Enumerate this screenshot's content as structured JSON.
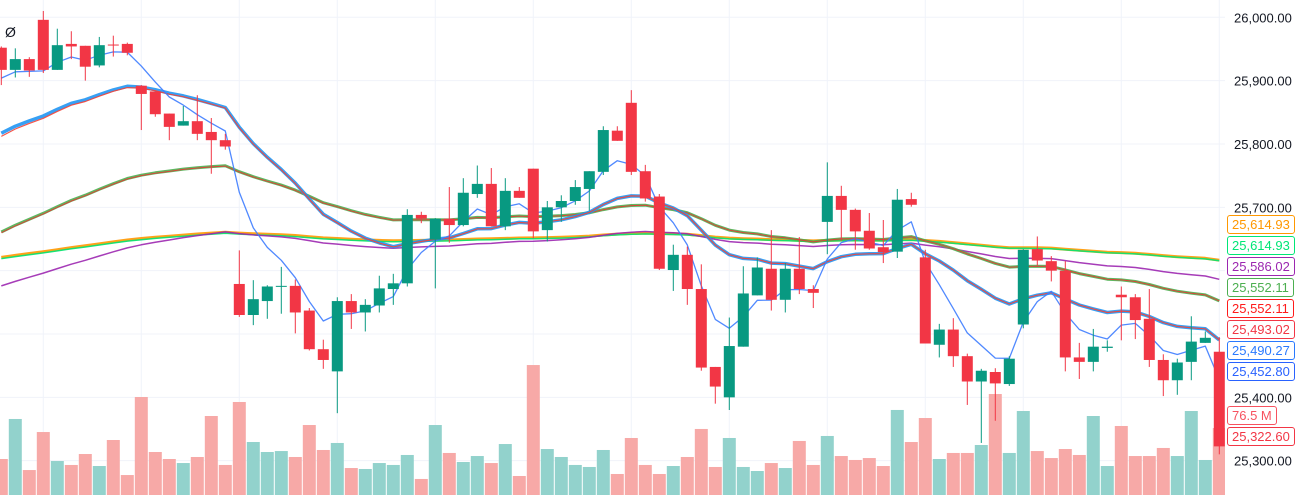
{
  "chart_data": {
    "type": "candlestick",
    "title": "",
    "symbol_marker": "Ø",
    "y_axis": {
      "range": [
        25280,
        26030
      ],
      "ticks": [
        "26,000.00",
        "25,900.00",
        "25,800.00",
        "25,700.00",
        "25,400.00",
        "25,300.00"
      ],
      "tick_values": [
        26000,
        25900,
        25800,
        25700,
        25400,
        25300
      ],
      "grid": true,
      "position": "right"
    },
    "colors": {
      "up": "#089981",
      "down": "#F23645",
      "volume_up": "#92D2CC",
      "volume_down": "#F7A9A7"
    },
    "candle_fields": [
      "open",
      "high",
      "low",
      "close",
      "volume_millions"
    ],
    "candles": [
      [
        25952,
        25954,
        25893,
        25917,
        41.1
      ],
      [
        25917,
        25951,
        25905,
        25934,
        86.8
      ],
      [
        25934,
        25937,
        25906,
        25916,
        28.5
      ],
      [
        25996,
        26010,
        25912,
        25917,
        71.9
      ],
      [
        25917,
        25982,
        25917,
        25956,
        38.8
      ],
      [
        25958,
        25978,
        25934,
        25954,
        34.3
      ],
      [
        25955,
        25955,
        25900,
        25922,
        46.8
      ],
      [
        25924,
        25969,
        25921,
        25956,
        33.1
      ],
      [
        25957,
        25971,
        25938,
        25956,
        62.8
      ],
      [
        25958,
        25960,
        25940,
        25944,
        22.8
      ],
      [
        25892,
        25893,
        25822,
        25879,
        111.9
      ],
      [
        25883,
        25883,
        25843,
        25847,
        49.1
      ],
      [
        25848,
        25848,
        25806,
        25827,
        41.1
      ],
      [
        25829,
        25860,
        25829,
        25836,
        36.5
      ],
      [
        25836,
        25877,
        25806,
        25816,
        43.4
      ],
      [
        25819,
        25841,
        25753,
        25806,
        90.2
      ],
      [
        25806,
        25816,
        25791,
        25796,
        34.3
      ],
      [
        25579,
        25632,
        25527,
        25530,
        106.2
      ],
      [
        25530,
        25585,
        25514,
        25555,
        60.5
      ],
      [
        25552,
        25577,
        25524,
        25575,
        49.1
      ],
      [
        25575,
        25606,
        25532,
        25576,
        50.2
      ],
      [
        25576,
        25586,
        25501,
        25534,
        43.4
      ],
      [
        25537,
        25541,
        25474,
        25476,
        79.9
      ],
      [
        25476,
        25491,
        25445,
        25459,
        51.4
      ],
      [
        25441,
        25558,
        25375,
        25552,
        59.4
      ],
      [
        25552,
        25563,
        25508,
        25534,
        30.8
      ],
      [
        25534,
        25555,
        25504,
        25546,
        29.7
      ],
      [
        25545,
        25592,
        25534,
        25572,
        36.5
      ],
      [
        25571,
        25595,
        25546,
        25580,
        34.3
      ],
      [
        25580,
        25697,
        25575,
        25688,
        45.7
      ],
      [
        25688,
        25693,
        25675,
        25682,
        18.3
      ],
      [
        25649,
        25683,
        25572,
        25682,
        79.9
      ],
      [
        25682,
        25732,
        25644,
        25672,
        48.0
      ],
      [
        25672,
        25746,
        25670,
        25723,
        37.7
      ],
      [
        25721,
        25766,
        25715,
        25737,
        44.5
      ],
      [
        25737,
        25762,
        25670,
        25670,
        36.5
      ],
      [
        25670,
        25746,
        25664,
        25726,
        58.2
      ],
      [
        25726,
        25732,
        25715,
        25715,
        21.7
      ],
      [
        25761,
        25761,
        25651,
        25662,
        148.4
      ],
      [
        25664,
        25710,
        25646,
        25700,
        52.5
      ],
      [
        25700,
        25719,
        25677,
        25710,
        43.4
      ],
      [
        25710,
        25743,
        25704,
        25732,
        34.3
      ],
      [
        25729,
        25757,
        25695,
        25757,
        32.0
      ],
      [
        25756,
        25828,
        25751,
        25822,
        51.4
      ],
      [
        25821,
        25828,
        25805,
        25805,
        24.0
      ],
      [
        25865,
        25885,
        25751,
        25756,
        65.1
      ],
      [
        25757,
        25767,
        25709,
        25714,
        34.3
      ],
      [
        25717,
        25721,
        25601,
        25603,
        24.0
      ],
      [
        25601,
        25641,
        25568,
        25625,
        33.1
      ],
      [
        25625,
        25638,
        25546,
        25571,
        43.4
      ],
      [
        25571,
        25610,
        25442,
        25447,
        75.4
      ],
      [
        25448,
        25448,
        25390,
        25417,
        32.0
      ],
      [
        25400,
        25526,
        25380,
        25481,
        65.1
      ],
      [
        25480,
        25607,
        25480,
        25564,
        32.0
      ],
      [
        25561,
        25621,
        25561,
        25605,
        27.4
      ],
      [
        25603,
        25664,
        25537,
        25554,
        36.5
      ],
      [
        25554,
        25612,
        25534,
        25603,
        30.8
      ],
      [
        25603,
        25653,
        25563,
        25571,
        61.7
      ],
      [
        25571,
        25577,
        25541,
        25565,
        34.3
      ],
      [
        25677,
        25771,
        25626,
        25718,
        67.4
      ],
      [
        25718,
        25734,
        25647,
        25696,
        44.5
      ],
      [
        25696,
        25698,
        25633,
        25662,
        40.0
      ],
      [
        25663,
        25691,
        25633,
        25635,
        42.2
      ],
      [
        25637,
        25680,
        25612,
        25629,
        33.1
      ],
      [
        25630,
        25729,
        25620,
        25712,
        97.1
      ],
      [
        25713,
        25723,
        25701,
        25704,
        60.5
      ],
      [
        25621,
        25633,
        25485,
        25485,
        87.9
      ],
      [
        25483,
        25516,
        25463,
        25507,
        41.1
      ],
      [
        25507,
        25525,
        25448,
        25465,
        48.0
      ],
      [
        25465,
        25469,
        25388,
        25425,
        48.0
      ],
      [
        25425,
        25445,
        25328,
        25442,
        57.1
      ],
      [
        25440,
        25446,
        25363,
        25422,
        115.3
      ],
      [
        25421,
        25465,
        25418,
        25461,
        48.0
      ],
      [
        25515,
        25634,
        25509,
        25633,
        95.9
      ],
      [
        25634,
        25654,
        25608,
        25616,
        50.2
      ],
      [
        25615,
        25623,
        25583,
        25600,
        42.2
      ],
      [
        25600,
        25615,
        25441,
        25463,
        52.5
      ],
      [
        25463,
        25486,
        25429,
        25456,
        45.7
      ],
      [
        25456,
        25508,
        25441,
        25480,
        90.2
      ],
      [
        25478,
        25490,
        25472,
        25480,
        33.1
      ],
      [
        25562,
        25575,
        25490,
        25558,
        78.8
      ],
      [
        25558,
        25563,
        25492,
        25522,
        44.5
      ],
      [
        25524,
        25571,
        25448,
        25459,
        44.5
      ],
      [
        25459,
        25468,
        25402,
        25427,
        53.7
      ],
      [
        25427,
        25461,
        25404,
        25455,
        44.5
      ],
      [
        25456,
        25528,
        25427,
        25488,
        95.9
      ],
      [
        25486,
        25504,
        25486,
        25494,
        40.0
      ],
      [
        25472,
        25495,
        25310,
        25322.6,
        76.5
      ]
    ],
    "moving_averages": [
      {
        "color": "#FF9800",
        "period": 200,
        "start": 25621,
        "width": 3
      },
      {
        "color": "#00E676",
        "period": 200,
        "start": 25619,
        "width": 1.5
      },
      {
        "color": "#9C27B0",
        "period": 100,
        "start": 25576,
        "width": 1.5
      },
      {
        "color": "#4CAF50",
        "period": 50,
        "start": 25661,
        "width": 3
      },
      {
        "color": "#E53935",
        "period": 50,
        "start": 25660,
        "width": 1
      },
      {
        "color": "#2196F3",
        "period": 20,
        "start": 25817,
        "width": 3.5
      },
      {
        "color": "#F44336",
        "period": 20,
        "start": 25812,
        "width": 1.2
      },
      {
        "color": "#3D7CFF",
        "period": 5,
        "start": 25904,
        "width": 1.3
      }
    ],
    "price_labels": [
      {
        "text": "25,614.93",
        "color": "#FF9800"
      },
      {
        "text": "25,614.93",
        "color": "#00E676"
      },
      {
        "text": "25,586.02",
        "color": "#9C27B0"
      },
      {
        "text": "25,552.11",
        "color": "#4CAF50"
      },
      {
        "text": "25,552.11",
        "color": "#FF1A1A"
      },
      {
        "text": "25,493.02",
        "color": "#F23645"
      },
      {
        "text": "25,490.27",
        "color": "#2979FF"
      },
      {
        "text": "25,452.80",
        "color": "#2962FF"
      },
      {
        "text": "76.5 M",
        "color": "#F7525F"
      },
      {
        "text": "25,322.60",
        "color": "#F23645"
      }
    ]
  }
}
